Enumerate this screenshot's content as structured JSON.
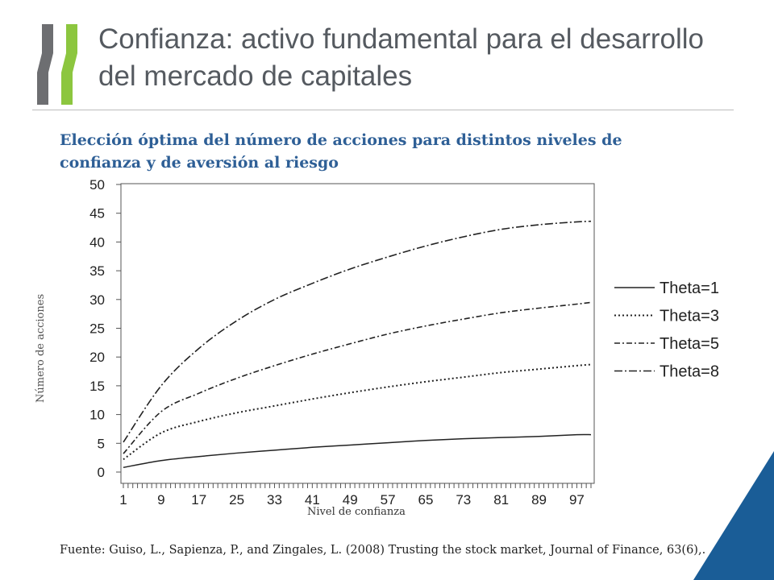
{
  "page": {
    "title": "Confianza: activo fundamental para el desarrollo del mercado de capitales",
    "subtitle": "Elección óptima del número de acciones para distintos niveles de confianza y de aversión al riesgo",
    "source": "Fuente: Guiso, L., Sapienza, P., and Zingales, L. (2008) Trusting the stock market, Journal of Finance, 63(6),."
  },
  "colors": {
    "brand_green": "#8cc63f",
    "brand_gray": "#6d6e71",
    "accent_blue": "#1a5d97",
    "title": "#555a60",
    "subtitle": "#2e5f96"
  },
  "chart_data": {
    "type": "line",
    "title": "Elección óptima del número de acciones para distintos niveles de confianza y de aversión al riesgo",
    "xlabel": "Nivel de confianza",
    "ylabel": "Número de acciones",
    "xlim": [
      1,
      100
    ],
    "ylim": [
      0,
      50
    ],
    "x_ticks": [
      1,
      9,
      17,
      25,
      33,
      41,
      49,
      57,
      65,
      73,
      81,
      89,
      97
    ],
    "y_ticks": [
      0,
      5,
      10,
      15,
      20,
      25,
      30,
      35,
      40,
      45,
      50
    ],
    "grid": false,
    "legend_position": "right",
    "x": [
      1,
      9,
      17,
      25,
      33,
      41,
      49,
      57,
      65,
      73,
      81,
      89,
      97,
      100
    ],
    "series": [
      {
        "name": "Theta=1",
        "style": "solid",
        "values": [
          0.8,
          2.0,
          2.7,
          3.3,
          3.8,
          4.3,
          4.7,
          5.1,
          5.5,
          5.8,
          6.0,
          6.2,
          6.5,
          6.5
        ]
      },
      {
        "name": "Theta=3",
        "style": "dotted",
        "values": [
          2.2,
          6.8,
          8.8,
          10.3,
          11.5,
          12.7,
          13.8,
          14.8,
          15.7,
          16.5,
          17.3,
          17.9,
          18.5,
          18.7
        ]
      },
      {
        "name": "Theta=5",
        "style": "dashdot",
        "values": [
          3.2,
          10.5,
          13.7,
          16.3,
          18.5,
          20.5,
          22.3,
          24.0,
          25.4,
          26.6,
          27.7,
          28.5,
          29.2,
          29.5
        ]
      },
      {
        "name": "Theta=8",
        "style": "dashdotlong",
        "values": [
          5.2,
          15.0,
          21.5,
          26.3,
          30.0,
          32.8,
          35.3,
          37.4,
          39.3,
          40.9,
          42.2,
          43.0,
          43.5,
          43.6
        ]
      }
    ]
  }
}
